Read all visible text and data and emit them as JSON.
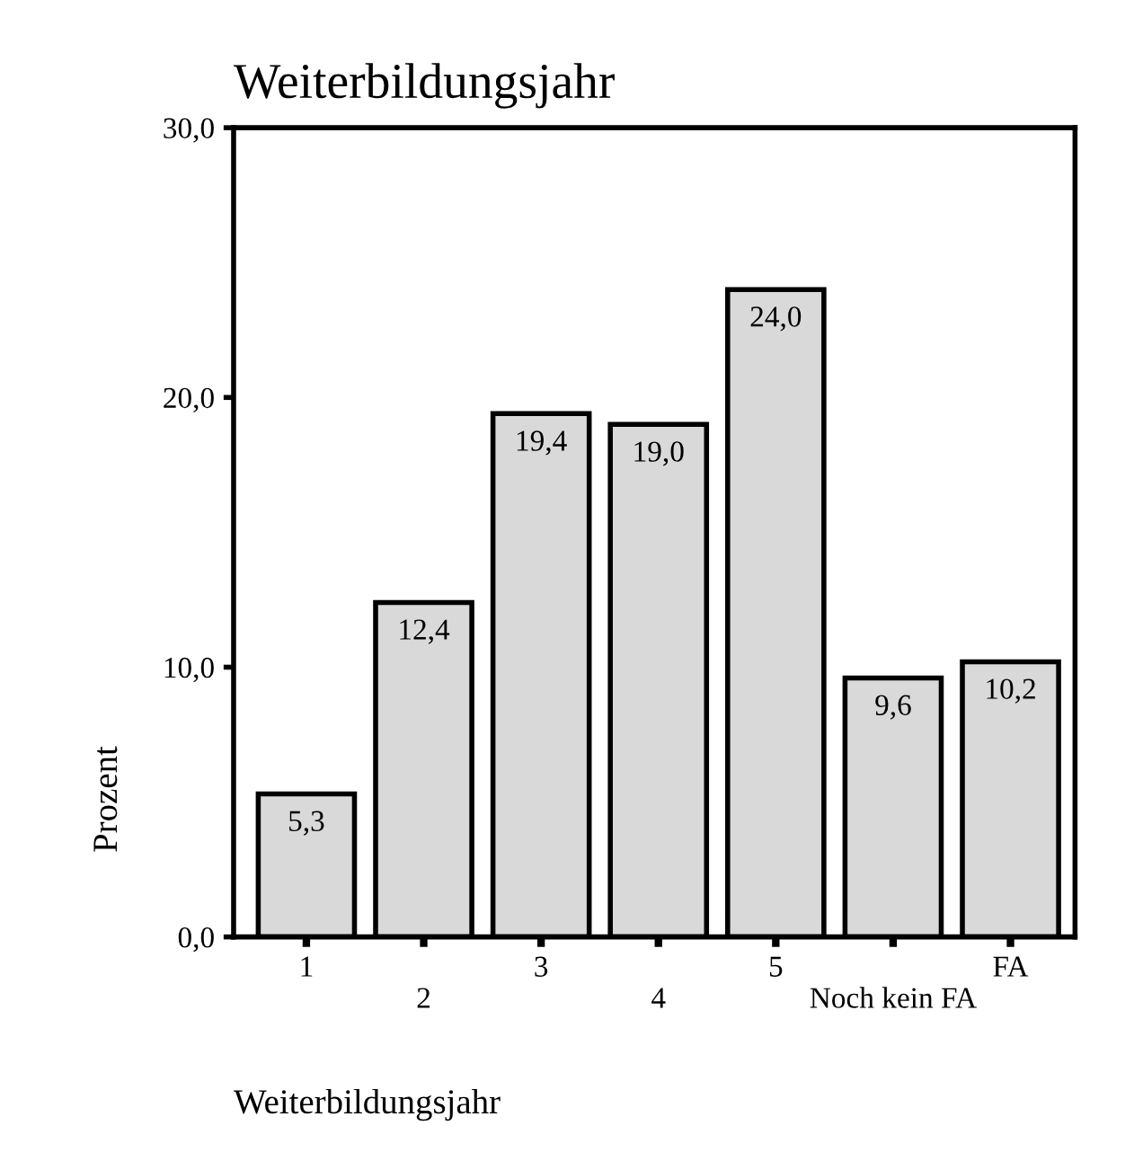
{
  "chart_data": {
    "type": "bar",
    "title": "Weiterbildungsjahr",
    "xlabel": "Weiterbildungsjahr",
    "ylabel": "Prozent",
    "categories": [
      "1",
      "2",
      "3",
      "4",
      "5",
      "Noch kein FA",
      "FA"
    ],
    "values": [
      5.3,
      12.4,
      19.4,
      19.0,
      24.0,
      9.6,
      10.2
    ],
    "value_labels": [
      "5,3",
      "12,4",
      "19,4",
      "19,0",
      "24,0",
      "9,6",
      "10,2"
    ],
    "color": "#d9d9d9",
    "ylim": [
      0,
      30
    ],
    "yticks": [
      {
        "value": 0,
        "label": "0,0"
      },
      {
        "value": 10,
        "label": "10,0"
      },
      {
        "value": 20,
        "label": "20,0"
      },
      {
        "value": 30,
        "label": "30,0"
      }
    ],
    "grid": false,
    "legend": false
  }
}
